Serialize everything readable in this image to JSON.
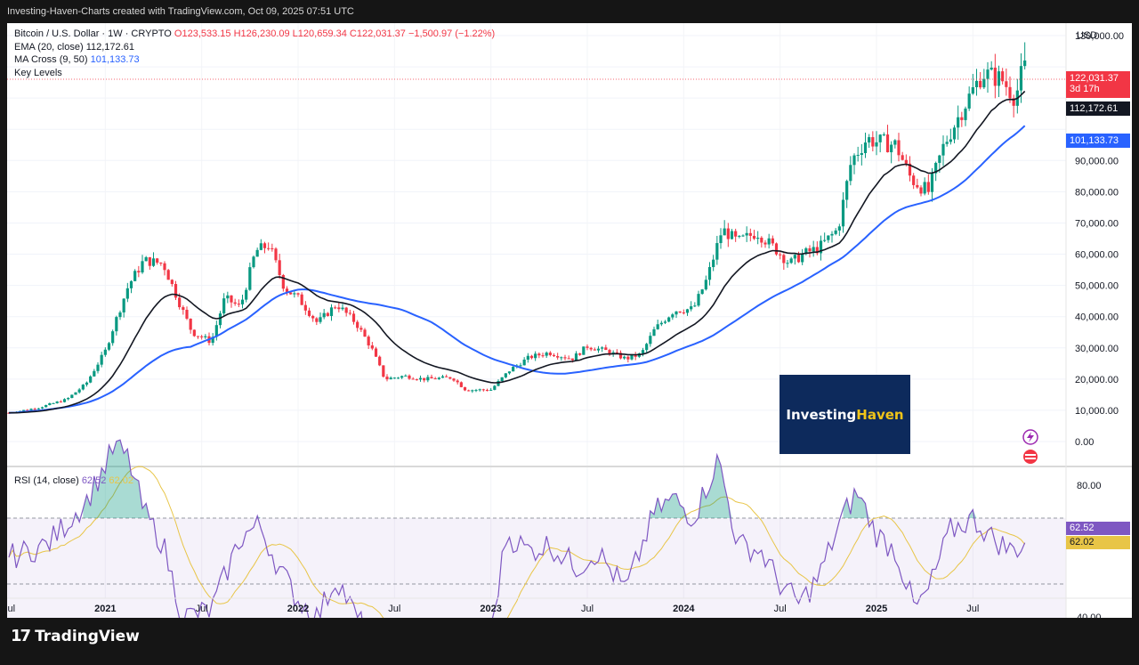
{
  "header": {
    "caption": "Investing-Haven-Charts created with TradingView.com, Oct 09, 2025 07:51 UTC"
  },
  "legend": {
    "symbol": "Bitcoin / U.S. Dollar · 1W · CRYPTO",
    "open": "O123,533.15",
    "high": "H126,230.09",
    "low": "L120,659.34",
    "close": "C122,031.37",
    "change": "−1,500.97 (−1.22%)",
    "ema_label": "EMA (20, close)",
    "ema_value": "112,172.61",
    "ma_label": "MA Cross (9, 50)",
    "ma_value": "101,133.73",
    "levels_label": "Key Levels"
  },
  "currency": "USD",
  "price_tags": {
    "last": "122,031.37",
    "countdown": "3d 17h",
    "ema": "112,172.61",
    "ma": "101,133.73"
  },
  "rsi_legend": {
    "label": "RSI (14, close)",
    "value": "62.52",
    "ma": "62.02"
  },
  "rsi_tags": {
    "value": "62.52",
    "ma": "62.02"
  },
  "watermark": {
    "part1": "Investing",
    "part2": "Haven"
  },
  "footer": {
    "brand": "TradingView",
    "mark": "17"
  },
  "colors": {
    "up": "#089981",
    "down": "#f23645",
    "ema": "#131722",
    "ma": "#2962ff",
    "rsi": "#7e57c2",
    "rsi_ma": "#e8c547"
  },
  "chart_data": [
    {
      "type": "candlestick",
      "title": "Bitcoin / U.S. Dollar · 1W · CRYPTO",
      "y_ticks": [
        0,
        10000,
        20000,
        30000,
        40000,
        50000,
        60000,
        70000,
        80000,
        90000,
        100000,
        110000,
        120000,
        130000
      ],
      "y_tick_labels": [
        "0.00",
        "10,000.00",
        "20,000.00",
        "30,000.00",
        "40,000.00",
        "50,000.00",
        "60,000.00",
        "70,000.00",
        "80,000.00",
        "90,000.00",
        "",
        "",
        "",
        "130,000.00"
      ],
      "x_tick_labels": [
        "Jul",
        "2021",
        "Jul",
        "2022",
        "Jul",
        "2023",
        "Jul",
        "2024",
        "Jul",
        "2025",
        "Jul"
      ],
      "price_anchors": [
        [
          2020.5,
          9200
        ],
        [
          2020.65,
          10800
        ],
        [
          2020.8,
          13500
        ],
        [
          2020.9,
          18500
        ],
        [
          2021.0,
          29000
        ],
        [
          2021.05,
          38000
        ],
        [
          2021.12,
          50000
        ],
        [
          2021.2,
          58000
        ],
        [
          2021.3,
          57000
        ],
        [
          2021.38,
          45000
        ],
        [
          2021.45,
          35000
        ],
        [
          2021.55,
          32000
        ],
        [
          2021.62,
          46000
        ],
        [
          2021.7,
          43000
        ],
        [
          2021.78,
          61000
        ],
        [
          2021.85,
          63000
        ],
        [
          2021.93,
          49000
        ],
        [
          2022.0,
          46000
        ],
        [
          2022.1,
          38000
        ],
        [
          2022.2,
          44000
        ],
        [
          2022.3,
          38000
        ],
        [
          2022.38,
          30000
        ],
        [
          2022.45,
          20000
        ],
        [
          2022.55,
          21000
        ],
        [
          2022.65,
          20000
        ],
        [
          2022.8,
          20500
        ],
        [
          2022.87,
          16500
        ],
        [
          2023.0,
          16600
        ],
        [
          2023.1,
          23000
        ],
        [
          2023.2,
          27000
        ],
        [
          2023.3,
          28500
        ],
        [
          2023.42,
          26500
        ],
        [
          2023.5,
          30500
        ],
        [
          2023.6,
          29000
        ],
        [
          2023.7,
          26500
        ],
        [
          2023.78,
          28000
        ],
        [
          2023.85,
          36000
        ],
        [
          2023.95,
          42000
        ],
        [
          2024.05,
          42500
        ],
        [
          2024.12,
          52000
        ],
        [
          2024.2,
          68000
        ],
        [
          2024.28,
          64000
        ],
        [
          2024.38,
          67000
        ],
        [
          2024.47,
          62000
        ],
        [
          2024.55,
          57000
        ],
        [
          2024.62,
          60000
        ],
        [
          2024.7,
          62000
        ],
        [
          2024.8,
          68000
        ],
        [
          2024.87,
          90000
        ],
        [
          2024.95,
          97000
        ],
        [
          2025.0,
          96000
        ],
        [
          2025.1,
          95000
        ],
        [
          2025.18,
          84000
        ],
        [
          2025.27,
          80000
        ],
        [
          2025.35,
          95000
        ],
        [
          2025.45,
          107000
        ],
        [
          2025.55,
          118000
        ],
        [
          2025.65,
          116000
        ],
        [
          2025.72,
          110000
        ],
        [
          2025.77,
          122000
        ]
      ],
      "last_close": 122031.37,
      "ema20": 112172.61,
      "ma50": 101133.73
    },
    {
      "type": "line",
      "title": "RSI (14, close)",
      "y_ticks": [
        40,
        80
      ],
      "y_tick_labels": [
        "40.00",
        "80.00"
      ],
      "bands": [
        30,
        50,
        70
      ],
      "rsi_anchors": [
        [
          2020.5,
          58
        ],
        [
          2020.7,
          62
        ],
        [
          2020.9,
          75
        ],
        [
          2021.0,
          86
        ],
        [
          2021.05,
          92
        ],
        [
          2021.12,
          88
        ],
        [
          2021.2,
          72
        ],
        [
          2021.3,
          62
        ],
        [
          2021.4,
          40
        ],
        [
          2021.55,
          42
        ],
        [
          2021.7,
          64
        ],
        [
          2021.8,
          68
        ],
        [
          2021.9,
          55
        ],
        [
          2022.0,
          45
        ],
        [
          2022.1,
          40
        ],
        [
          2022.2,
          52
        ],
        [
          2022.3,
          40
        ],
        [
          2022.4,
          32
        ],
        [
          2022.48,
          26
        ],
        [
          2022.6,
          35
        ],
        [
          2022.75,
          36
        ],
        [
          2022.87,
          30
        ],
        [
          2023.0,
          35
        ],
        [
          2023.08,
          65
        ],
        [
          2023.2,
          60
        ],
        [
          2023.3,
          62
        ],
        [
          2023.45,
          55
        ],
        [
          2023.55,
          60
        ],
        [
          2023.7,
          48
        ],
        [
          2023.85,
          72
        ],
        [
          2023.95,
          76
        ],
        [
          2024.05,
          70
        ],
        [
          2024.18,
          88
        ],
        [
          2024.28,
          62
        ],
        [
          2024.4,
          60
        ],
        [
          2024.5,
          50
        ],
        [
          2024.6,
          44
        ],
        [
          2024.7,
          52
        ],
        [
          2024.82,
          70
        ],
        [
          2024.9,
          78
        ],
        [
          2025.0,
          65
        ],
        [
          2025.1,
          60
        ],
        [
          2025.2,
          42
        ],
        [
          2025.27,
          48
        ],
        [
          2025.38,
          66
        ],
        [
          2025.5,
          70
        ],
        [
          2025.6,
          64
        ],
        [
          2025.7,
          60
        ],
        [
          2025.77,
          62.52
        ]
      ],
      "last_value": 62.52,
      "ma_value": 62.02
    }
  ]
}
